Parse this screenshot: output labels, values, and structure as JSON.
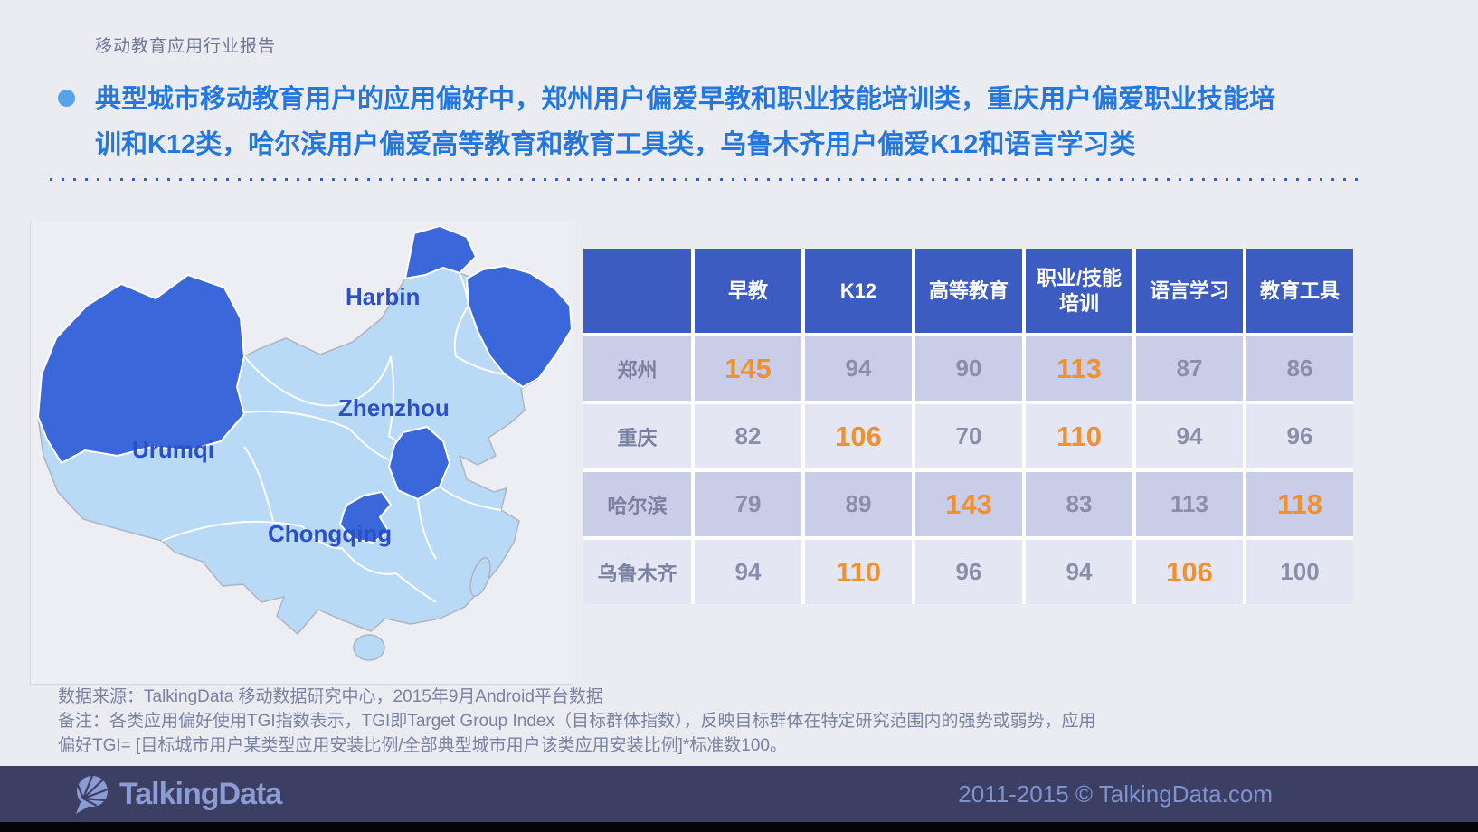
{
  "colors": {
    "accent_blue": "#2377DD",
    "bullet_dot": "#57A2E9",
    "table_header_bg": "#3D5CC2",
    "row_odd_bg": "#C9CDE8",
    "row_even_bg": "#E4E6F3",
    "number_gray": "#898FA8",
    "highlight_orange": "#F0912F",
    "map_base_blue": "#B9DAF6",
    "map_highlight_blue": "#3A67D9",
    "map_label_blue": "#2B50C6",
    "footer_bg": "#3A3F63",
    "footer_text": "#8192CC"
  },
  "header": {
    "report_label": "移动教育应用行业报告"
  },
  "headline": {
    "lines": [
      "典型城市移动教育用户的应用偏好中，郑州用户偏爱早教和职业技能培训类，重庆用户偏爱职业技能培",
      "训和K12类，哈尔滨用户偏爱高等教育和教育工具类，乌鲁木齐用户偏爱K12和语言学习类"
    ]
  },
  "map": {
    "labels": [
      {
        "name": "Harbin"
      },
      {
        "name": "Zhenzhou"
      },
      {
        "name": "Urumqi"
      },
      {
        "name": "Chongqing"
      }
    ],
    "highlighted_regions": [
      "Xinjiang",
      "Heilongjiang",
      "Henan",
      "Chongqing"
    ]
  },
  "chart_data": {
    "type": "table",
    "columns": [
      "早教",
      "K12",
      "高等教育",
      "职业/技能培训",
      "语言学习",
      "教育工具"
    ],
    "rows": [
      {
        "city": "郑州",
        "values": [
          145,
          94,
          90,
          113,
          87,
          86
        ],
        "highlighted": [
          0,
          3
        ]
      },
      {
        "city": "重庆",
        "values": [
          82,
          106,
          70,
          110,
          94,
          96
        ],
        "highlighted": [
          1,
          3
        ]
      },
      {
        "city": "哈尔滨",
        "values": [
          79,
          89,
          143,
          83,
          113,
          118
        ],
        "highlighted": [
          2,
          5
        ]
      },
      {
        "city": "乌鲁木齐",
        "values": [
          94,
          110,
          96,
          94,
          106,
          100
        ],
        "highlighted": [
          1,
          4
        ]
      }
    ]
  },
  "notes": {
    "source": "数据来源：TalkingData 移动数据研究中心，2015年9月Android平台数据",
    "remark_lines": [
      "备注：各类应用偏好使用TGI指数表示，TGI即Target Group Index（目标群体指数），反映目标群体在特定研究范围内的强势或弱势，应用",
      "偏好TGI= [目标城市用户某类型应用安装比例/全部典型城市用户该类应用安装比例]*标准数100。"
    ]
  },
  "footer": {
    "logo_text": "TalkingData",
    "copyright": "2011-2015 © TalkingData.com"
  }
}
